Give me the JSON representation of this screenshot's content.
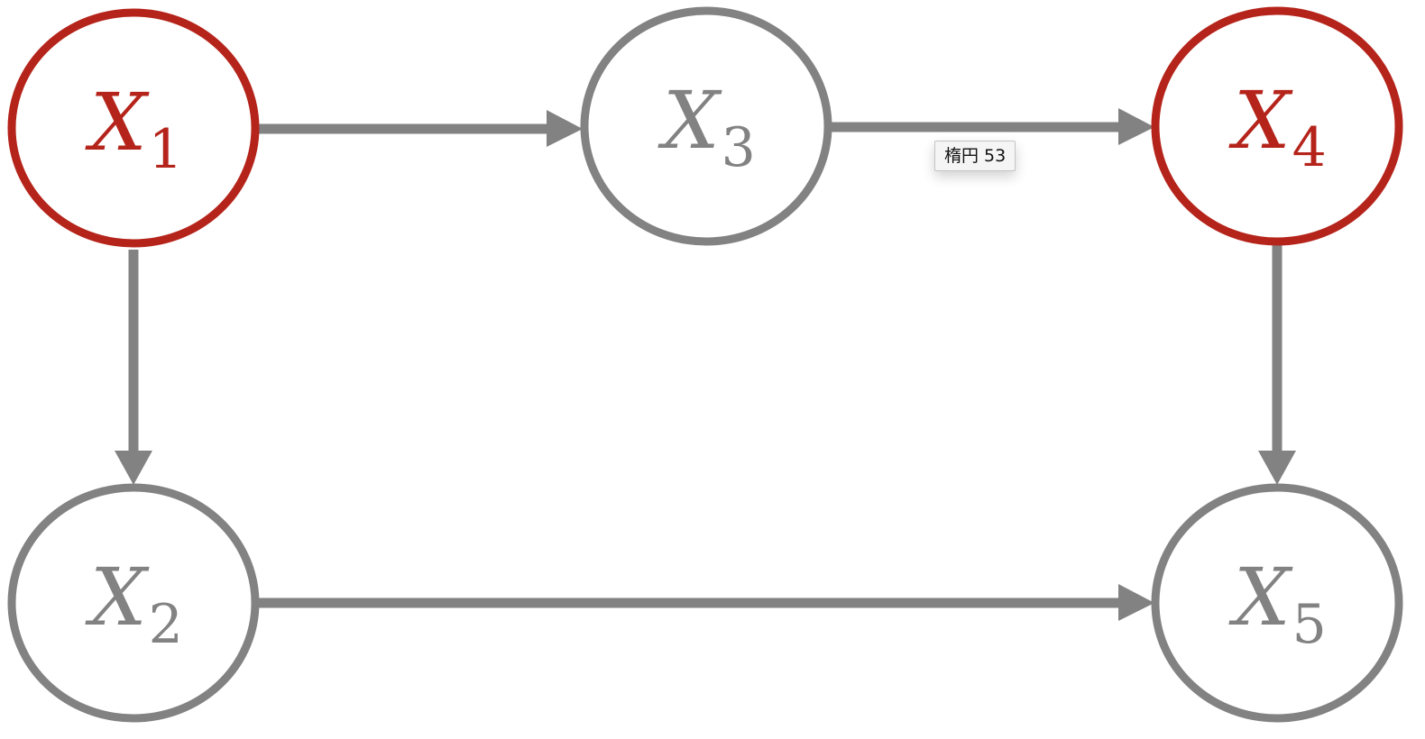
{
  "colors": {
    "highlight": "#b5241b",
    "normal": "#828282",
    "edge": "#828282"
  },
  "nodes": [
    {
      "id": "x1",
      "base": "X",
      "sub": "1",
      "highlighted": true
    },
    {
      "id": "x2",
      "base": "X",
      "sub": "2",
      "highlighted": false
    },
    {
      "id": "x3",
      "base": "X",
      "sub": "3",
      "highlighted": false
    },
    {
      "id": "x4",
      "base": "X",
      "sub": "4",
      "highlighted": true
    },
    {
      "id": "x5",
      "base": "X",
      "sub": "5",
      "highlighted": false
    }
  ],
  "edges": [
    {
      "from": "x1",
      "to": "x3"
    },
    {
      "from": "x3",
      "to": "x4"
    },
    {
      "from": "x1",
      "to": "x2"
    },
    {
      "from": "x4",
      "to": "x5"
    },
    {
      "from": "x2",
      "to": "x5"
    }
  ],
  "tooltip": {
    "text": "楕円 53"
  }
}
